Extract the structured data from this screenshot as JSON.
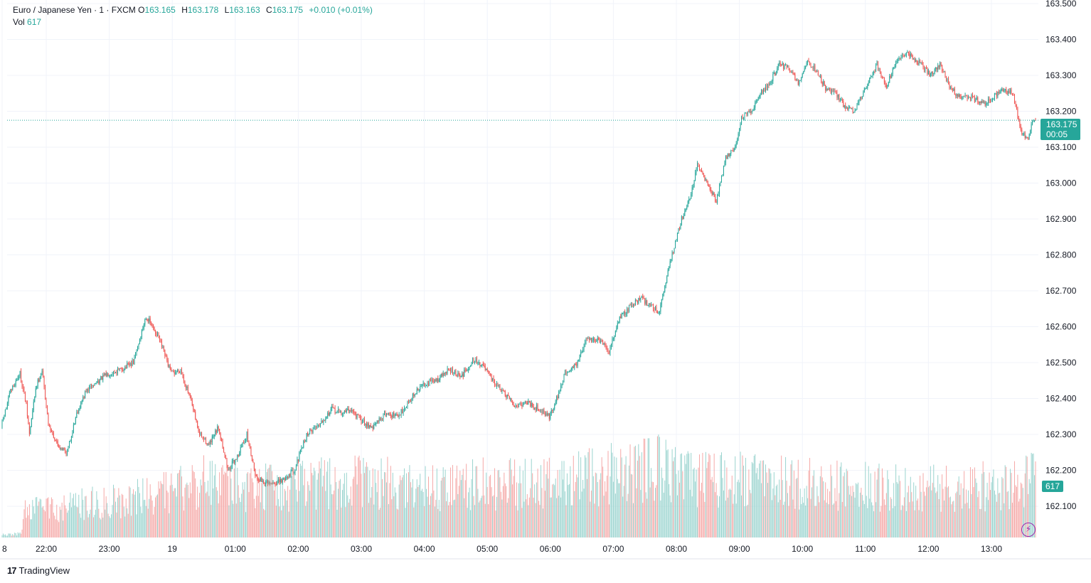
{
  "header": {
    "symbol": "Euro / Japanese Yen · 1 · FXCM",
    "o_label": "O",
    "o_value": "163.165",
    "h_label": "H",
    "h_value": "163.178",
    "l_label": "L",
    "l_value": "163.163",
    "c_label": "C",
    "c_value": "163.175",
    "change": "+0.010 (+0.01%)",
    "vol_label": "Vol",
    "vol_value": "617"
  },
  "price_tag": {
    "price": "163.175",
    "countdown": "00:05"
  },
  "volume_tag": "617",
  "brand": {
    "name": "TradingView"
  },
  "colors": {
    "up": "#26a69a",
    "down": "#ef5350",
    "up_vol": "#9bd4cf",
    "down_vol": "#f5a9a8",
    "grid": "#f0f3fa",
    "accent": "#9c27b0"
  },
  "icons": {
    "brand_logo": "tradingview-logo-icon",
    "flash": "lightning-icon"
  },
  "chart_data": {
    "type": "candlestick",
    "symbol": "EURJPY",
    "interval_minutes": 1,
    "y_ticks": [
      "163.500",
      "163.400",
      "163.300",
      "163.200",
      "163.100",
      "163.000",
      "162.900",
      "162.800",
      "162.700",
      "162.600",
      "162.500",
      "162.400",
      "162.300",
      "162.200",
      "162.100"
    ],
    "ylim": [
      162.013,
      163.51
    ],
    "x_ticks": [
      {
        "label": "8",
        "hour": 21.3
      },
      {
        "label": "22:00",
        "hour": 22
      },
      {
        "label": "23:00",
        "hour": 23
      },
      {
        "label": "19",
        "hour": 24
      },
      {
        "label": "01:00",
        "hour": 25
      },
      {
        "label": "02:00",
        "hour": 26
      },
      {
        "label": "03:00",
        "hour": 27
      },
      {
        "label": "04:00",
        "hour": 28
      },
      {
        "label": "05:00",
        "hour": 29
      },
      {
        "label": "06:00",
        "hour": 30
      },
      {
        "label": "07:00",
        "hour": 31
      },
      {
        "label": "08:00",
        "hour": 32
      },
      {
        "label": "09:00",
        "hour": 33
      },
      {
        "label": "10:00",
        "hour": 34
      },
      {
        "label": "11:00",
        "hour": 35
      },
      {
        "label": "12:00",
        "hour": 36
      },
      {
        "label": "13:00",
        "hour": 37
      }
    ],
    "last_price": 163.175,
    "price_path": [
      [
        21.3,
        162.32
      ],
      [
        21.45,
        162.42
      ],
      [
        21.6,
        162.47
      ],
      [
        21.7,
        162.38
      ],
      [
        21.75,
        162.3
      ],
      [
        21.85,
        162.43
      ],
      [
        21.95,
        162.48
      ],
      [
        22.05,
        162.33
      ],
      [
        22.2,
        162.27
      ],
      [
        22.35,
        162.25
      ],
      [
        22.5,
        162.36
      ],
      [
        22.65,
        162.42
      ],
      [
        22.85,
        162.45
      ],
      [
        23.0,
        162.47
      ],
      [
        23.2,
        162.48
      ],
      [
        23.4,
        162.5
      ],
      [
        23.6,
        162.63
      ],
      [
        23.8,
        162.57
      ],
      [
        24.0,
        162.47
      ],
      [
        24.15,
        162.48
      ],
      [
        24.3,
        162.4
      ],
      [
        24.45,
        162.3
      ],
      [
        24.6,
        162.27
      ],
      [
        24.75,
        162.32
      ],
      [
        24.9,
        162.2
      ],
      [
        25.05,
        162.24
      ],
      [
        25.2,
        162.3
      ],
      [
        25.35,
        162.18
      ],
      [
        25.55,
        162.16
      ],
      [
        25.75,
        162.17
      ],
      [
        25.95,
        162.2
      ],
      [
        26.15,
        162.3
      ],
      [
        26.35,
        162.33
      ],
      [
        26.55,
        162.37
      ],
      [
        26.7,
        162.36
      ],
      [
        26.85,
        162.37
      ],
      [
        27.0,
        162.34
      ],
      [
        27.2,
        162.32
      ],
      [
        27.4,
        162.36
      ],
      [
        27.6,
        162.35
      ],
      [
        27.8,
        162.4
      ],
      [
        28.0,
        162.44
      ],
      [
        28.2,
        162.45
      ],
      [
        28.4,
        162.48
      ],
      [
        28.6,
        162.46
      ],
      [
        28.8,
        162.51
      ],
      [
        28.95,
        162.49
      ],
      [
        29.1,
        162.45
      ],
      [
        29.25,
        162.42
      ],
      [
        29.45,
        162.38
      ],
      [
        29.65,
        162.39
      ],
      [
        29.85,
        162.37
      ],
      [
        30.0,
        162.35
      ],
      [
        30.1,
        162.39
      ],
      [
        30.25,
        162.47
      ],
      [
        30.45,
        162.5
      ],
      [
        30.6,
        162.57
      ],
      [
        30.8,
        162.56
      ],
      [
        30.95,
        162.53
      ],
      [
        31.1,
        162.62
      ],
      [
        31.3,
        162.66
      ],
      [
        31.45,
        162.68
      ],
      [
        31.6,
        162.66
      ],
      [
        31.75,
        162.64
      ],
      [
        31.9,
        162.77
      ],
      [
        32.1,
        162.9
      ],
      [
        32.25,
        162.97
      ],
      [
        32.35,
        163.05
      ],
      [
        32.5,
        163.0
      ],
      [
        32.65,
        162.95
      ],
      [
        32.8,
        163.07
      ],
      [
        32.95,
        163.1
      ],
      [
        33.05,
        163.18
      ],
      [
        33.2,
        163.2
      ],
      [
        33.35,
        163.25
      ],
      [
        33.5,
        163.28
      ],
      [
        33.65,
        163.33
      ],
      [
        33.8,
        163.32
      ],
      [
        33.95,
        163.28
      ],
      [
        34.1,
        163.34
      ],
      [
        34.25,
        163.31
      ],
      [
        34.4,
        163.26
      ],
      [
        34.55,
        163.25
      ],
      [
        34.7,
        163.21
      ],
      [
        34.85,
        163.2
      ],
      [
        35.0,
        163.26
      ],
      [
        35.2,
        163.33
      ],
      [
        35.35,
        163.27
      ],
      [
        35.5,
        163.34
      ],
      [
        35.7,
        163.36
      ],
      [
        35.9,
        163.33
      ],
      [
        36.05,
        163.3
      ],
      [
        36.2,
        163.33
      ],
      [
        36.35,
        163.27
      ],
      [
        36.5,
        163.24
      ],
      [
        36.7,
        163.24
      ],
      [
        36.9,
        163.22
      ],
      [
        37.05,
        163.24
      ],
      [
        37.2,
        163.26
      ],
      [
        37.35,
        163.25
      ],
      [
        37.5,
        163.14
      ],
      [
        37.6,
        163.12
      ],
      [
        37.65,
        163.16
      ],
      [
        37.7,
        163.175
      ]
    ],
    "volume_profile": {
      "max_bars_approx": 185,
      "note_levels": [
        [
          21.3,
          0.02
        ],
        [
          21.6,
          0.03
        ],
        [
          21.65,
          0.2
        ],
        [
          24.0,
          0.35
        ],
        [
          24.5,
          0.45
        ],
        [
          25.2,
          0.38
        ],
        [
          26.0,
          0.4
        ],
        [
          27.0,
          0.45
        ],
        [
          28.0,
          0.38
        ],
        [
          29.0,
          0.42
        ],
        [
          30.0,
          0.42
        ],
        [
          31.0,
          0.5
        ],
        [
          31.7,
          0.55
        ],
        [
          32.2,
          0.45
        ],
        [
          33.0,
          0.45
        ],
        [
          34.0,
          0.42
        ],
        [
          35.0,
          0.4
        ],
        [
          36.0,
          0.38
        ],
        [
          37.0,
          0.4
        ],
        [
          37.7,
          0.45
        ]
      ]
    }
  }
}
